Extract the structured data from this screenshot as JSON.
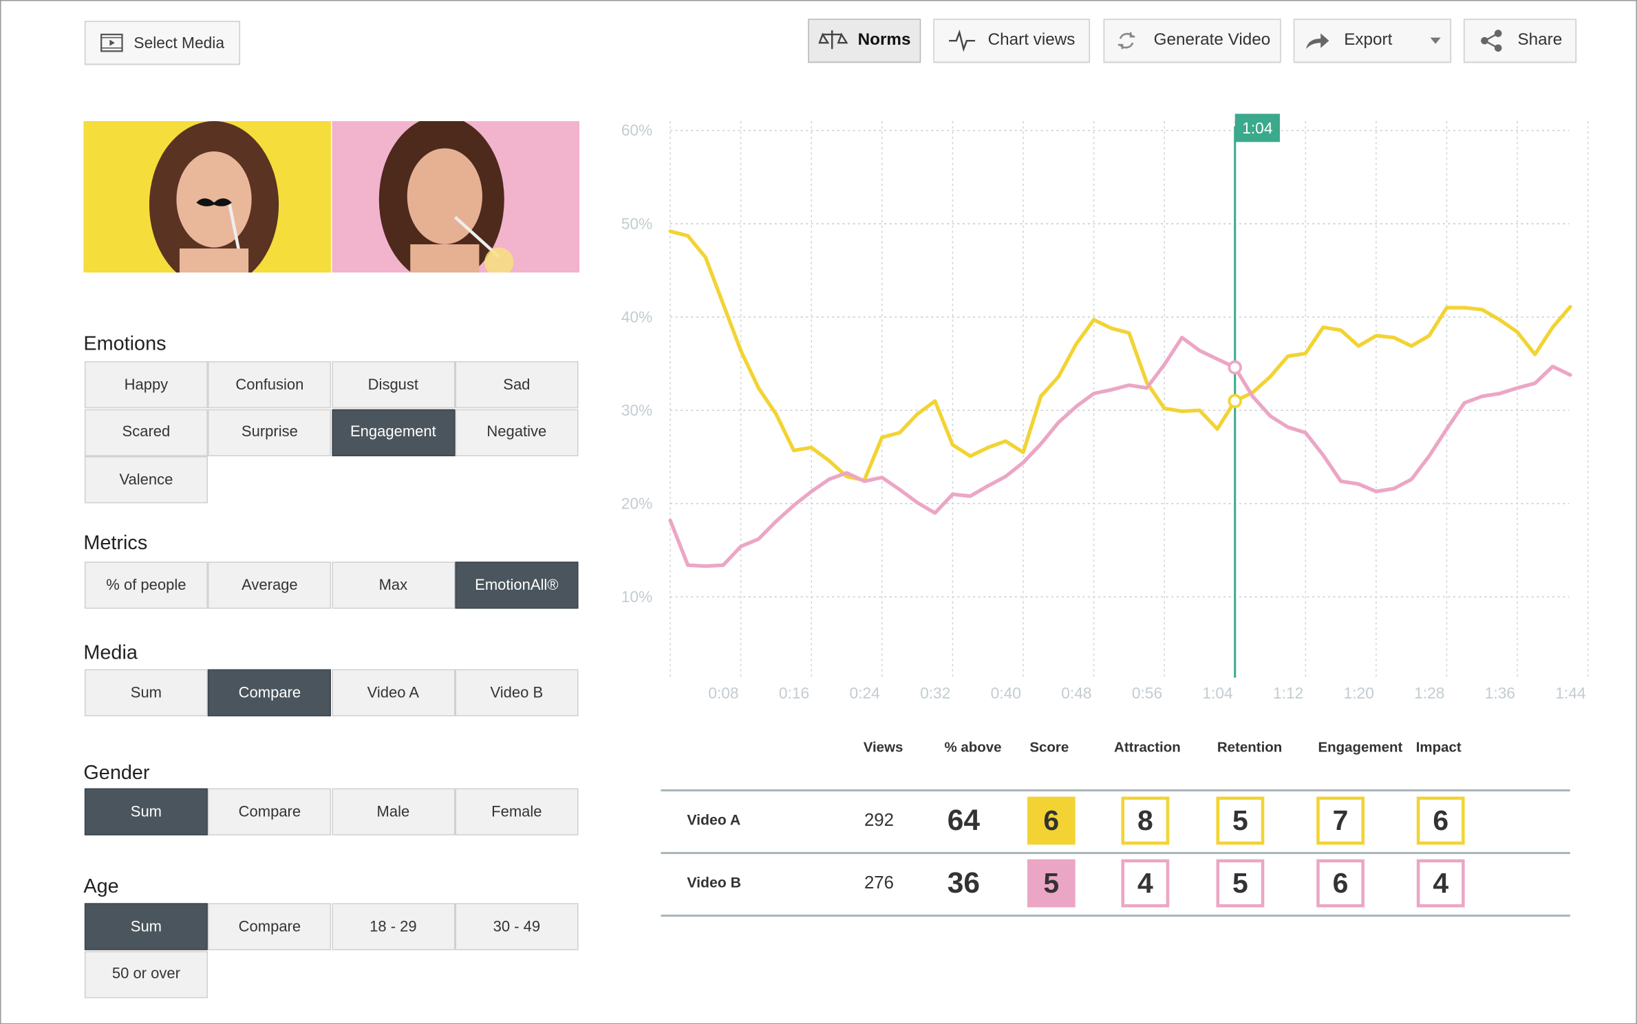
{
  "toolbar": {
    "select_media": "Select Media",
    "buttons": [
      "Norms",
      "Chart views",
      "Generate Video",
      "Export",
      "Share"
    ],
    "active": 0
  },
  "panels": [
    {
      "title": "Emotions",
      "options": [
        "Happy",
        "Confusion",
        "Disgust",
        "Sad",
        "Scared",
        "Surprise",
        "Engagement",
        "Negative",
        "Valence"
      ],
      "selected": [
        6
      ]
    },
    {
      "title": "Metrics",
      "options": [
        "% of people",
        "Average",
        "Max",
        "EmotionAll®"
      ],
      "selected": [
        3
      ]
    },
    {
      "title": "Media",
      "options": [
        "Sum",
        "Compare",
        "Video A",
        "Video B"
      ],
      "selected": [
        1
      ]
    },
    {
      "title": "Gender",
      "options": [
        "Sum",
        "Compare",
        "Male",
        "Female"
      ],
      "selected": [
        0
      ]
    },
    {
      "title": "Age",
      "options": [
        "Sum",
        "Compare",
        "18 - 29",
        "30 - 49",
        "50 or over"
      ],
      "selected": [
        0
      ]
    }
  ],
  "chart_data": {
    "type": "line",
    "x": [
      0,
      2,
      4,
      6,
      8,
      10,
      12,
      14,
      16,
      18,
      20,
      22,
      24,
      26,
      28,
      30,
      32,
      34,
      36,
      38,
      40,
      42,
      44,
      46,
      48,
      50,
      52,
      54,
      56,
      58,
      60,
      62,
      64,
      66,
      68,
      70,
      72,
      74,
      76,
      78,
      80,
      82,
      84,
      86,
      88,
      90,
      92,
      94,
      96,
      98,
      100,
      102
    ],
    "xlim": [
      0,
      104
    ],
    "xticks": [
      {
        "value": 8,
        "label": "0:08"
      },
      {
        "value": 16,
        "label": "0:16"
      },
      {
        "value": 24,
        "label": "0:24"
      },
      {
        "value": 32,
        "label": "0:32"
      },
      {
        "value": 40,
        "label": "0:40"
      },
      {
        "value": 48,
        "label": "0:48"
      },
      {
        "value": 56,
        "label": "0:56"
      },
      {
        "value": 64,
        "label": "1:04"
      },
      {
        "value": 72,
        "label": "1:12"
      },
      {
        "value": 80,
        "label": "1:20"
      },
      {
        "value": 88,
        "label": "1:28"
      },
      {
        "value": 96,
        "label": "1:36"
      },
      {
        "value": 104,
        "label": "1:44"
      }
    ],
    "ylim": [
      0,
      60
    ],
    "yticks": [
      {
        "value": 10,
        "label": "10%"
      },
      {
        "value": 20,
        "label": "20%"
      },
      {
        "value": 30,
        "label": "30%"
      },
      {
        "value": 40,
        "label": "40%"
      },
      {
        "value": 50,
        "label": "50%"
      },
      {
        "value": 60,
        "label": "60%"
      }
    ],
    "grid": true,
    "series": [
      {
        "color": "#f2d333",
        "values": [
          49.2,
          48.7,
          46.4,
          41.4,
          36.4,
          32.4,
          29.6,
          25.7,
          26,
          24.6,
          22.9,
          22.5,
          27.1,
          27.6,
          29.6,
          31,
          26.3,
          25.1,
          26,
          26.7,
          25.5,
          31.5,
          33.6,
          37.1,
          39.7,
          38.8,
          38.3,
          33,
          30.2,
          29.9,
          30,
          28,
          31,
          31.9,
          33.6,
          35.8,
          36.1,
          38.9,
          38.6,
          36.9,
          38,
          37.8,
          36.9,
          38,
          41,
          41,
          40.8,
          39.7,
          38.4,
          36,
          38.9,
          41.1
        ]
      },
      {
        "color": "#eca6c5",
        "values": [
          18.2,
          13.4,
          13.3,
          13.4,
          15.4,
          16.2,
          18.1,
          19.8,
          21.3,
          22.6,
          23.3,
          22.4,
          22.8,
          21.5,
          20.1,
          19,
          21,
          20.8,
          21.9,
          22.9,
          24.4,
          26.4,
          28.7,
          30.4,
          31.8,
          32.2,
          32.7,
          32.4,
          34.9,
          37.8,
          36.4,
          35.5,
          34.6,
          31.5,
          29.4,
          28.2,
          27.6,
          25.2,
          22.4,
          22.1,
          21.3,
          21.6,
          22.6,
          25.1,
          28,
          30.8,
          31.5,
          31.8,
          32.4,
          32.9,
          34.7,
          33.8
        ]
      }
    ],
    "cursor": {
      "value": 64,
      "label": "1:04",
      "color": "#3aa98c"
    }
  },
  "table": {
    "headers": [
      "Views",
      "% above",
      "Score",
      "Attraction",
      "Retention",
      "Engagement",
      "Impact"
    ],
    "rows": [
      {
        "label": "Video A",
        "views": 292,
        "above": 64,
        "scores": [
          6,
          8,
          5,
          7,
          6
        ]
      },
      {
        "label": "Video B",
        "views": 276,
        "above": 36,
        "scores": [
          5,
          4,
          5,
          6,
          4
        ]
      }
    ]
  }
}
